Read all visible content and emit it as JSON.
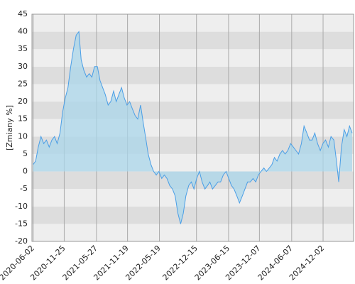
{
  "chart_data": {
    "type": "area",
    "y_label": "[Zmiany %]",
    "color": "#4a9ee6",
    "fill": "#a9d6ea",
    "band_colors": [
      "#eeeeee",
      "#dddddd"
    ],
    "grid": true,
    "xlim": [
      "2020-05-26",
      "2025-05-24"
    ],
    "xticks": [
      "2020-06-02",
      "2020-11-25",
      "2021-05-27",
      "2021-11-19",
      "2022-05-19",
      "2022-12-15",
      "2023-06-15",
      "2023-12-07",
      "2024-06-07",
      "2024-12-02"
    ],
    "ylim": [
      -20,
      45
    ],
    "yticks": [
      -20,
      -15,
      -10,
      -5,
      0,
      5,
      10,
      15,
      20,
      25,
      30,
      35,
      40,
      45
    ],
    "x": [
      "2020-06-02",
      "2020-06-16",
      "2020-07-01",
      "2020-07-16",
      "2020-08-01",
      "2020-08-16",
      "2020-09-01",
      "2020-09-16",
      "2020-10-01",
      "2020-10-16",
      "2020-11-01",
      "2020-11-16",
      "2020-12-01",
      "2020-12-16",
      "2021-01-01",
      "2021-01-16",
      "2021-02-01",
      "2021-02-16",
      "2021-03-01",
      "2021-03-16",
      "2021-04-01",
      "2021-04-16",
      "2021-05-01",
      "2021-05-16",
      "2021-06-01",
      "2021-06-16",
      "2021-07-01",
      "2021-07-16",
      "2021-08-01",
      "2021-08-16",
      "2021-09-01",
      "2021-09-16",
      "2021-10-01",
      "2021-10-16",
      "2021-11-01",
      "2021-11-16",
      "2021-12-01",
      "2021-12-16",
      "2022-01-01",
      "2022-01-16",
      "2022-02-01",
      "2022-02-16",
      "2022-03-01",
      "2022-03-16",
      "2022-04-01",
      "2022-04-16",
      "2022-05-01",
      "2022-05-16",
      "2022-06-01",
      "2022-06-16",
      "2022-07-01",
      "2022-07-16",
      "2022-08-01",
      "2022-08-16",
      "2022-09-01",
      "2022-09-16",
      "2022-10-01",
      "2022-10-16",
      "2022-11-01",
      "2022-11-16",
      "2022-12-01",
      "2022-12-16",
      "2023-01-01",
      "2023-01-16",
      "2023-02-01",
      "2023-02-16",
      "2023-03-01",
      "2023-03-16",
      "2023-04-01",
      "2023-04-16",
      "2023-05-01",
      "2023-05-16",
      "2023-06-01",
      "2023-06-16",
      "2023-07-01",
      "2023-07-16",
      "2023-08-01",
      "2023-08-16",
      "2023-09-01",
      "2023-09-16",
      "2023-10-01",
      "2023-10-16",
      "2023-11-01",
      "2023-11-16",
      "2023-12-01",
      "2023-12-16",
      "2024-01-01",
      "2024-01-16",
      "2024-02-01",
      "2024-02-16",
      "2024-03-01",
      "2024-03-16",
      "2024-04-01",
      "2024-04-16",
      "2024-05-01",
      "2024-05-16",
      "2024-06-01",
      "2024-06-16",
      "2024-07-01",
      "2024-07-16",
      "2024-08-01",
      "2024-08-16",
      "2024-09-01",
      "2024-09-16",
      "2024-10-01",
      "2024-10-16",
      "2024-11-01",
      "2024-11-16",
      "2024-12-01",
      "2024-12-16",
      "2025-01-01",
      "2025-01-16",
      "2025-02-01",
      "2025-02-16",
      "2025-03-01",
      "2025-03-16",
      "2025-04-01",
      "2025-04-16",
      "2025-05-01",
      "2025-05-16"
    ],
    "values": [
      2,
      3,
      7,
      10,
      8,
      9,
      7,
      9,
      10,
      8,
      11,
      17,
      21,
      24,
      30,
      35,
      39,
      40,
      32,
      29,
      27,
      28,
      27,
      30,
      30,
      26,
      24,
      22,
      19,
      20,
      23,
      20,
      22,
      24,
      21,
      19,
      20,
      18,
      16,
      15,
      19,
      14,
      10,
      5,
      2,
      0,
      -1,
      0,
      -2,
      -1,
      -2,
      -4,
      -5,
      -7,
      -12,
      -15,
      -12,
      -7,
      -4,
      -3,
      -5,
      -2,
      0,
      -3,
      -5,
      -4,
      -3,
      -5,
      -4,
      -3,
      -3,
      -1,
      0,
      -2,
      -4,
      -5,
      -7,
      -9,
      -7,
      -5,
      -3,
      -3,
      -2,
      -3,
      -1,
      0,
      1,
      0,
      1,
      2,
      4,
      3,
      5,
      6,
      5,
      6,
      8,
      7,
      6,
      5,
      8,
      13,
      11,
      9,
      9,
      11,
      8,
      6,
      8,
      9,
      7,
      10,
      9,
      3,
      -3,
      7,
      12,
      10,
      13,
      11
    ]
  }
}
